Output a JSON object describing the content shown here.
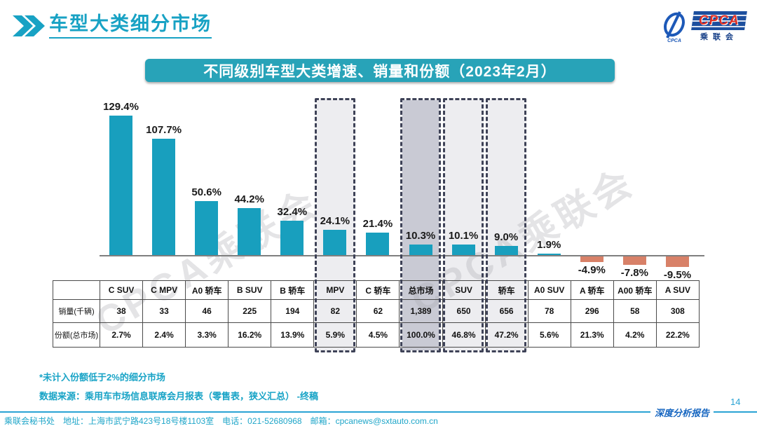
{
  "header": {
    "title": "车型大类细分市场"
  },
  "logo": {
    "emblem_sub": "CPCA",
    "box_text": "CPCA",
    "box_sub": "乘联会"
  },
  "chart_data": {
    "type": "bar",
    "title": "不同级别车型大类增速、销量和份额（2023年2月）",
    "categories": [
      "C SUV",
      "C MPV",
      "A0 轿车",
      "B SUV",
      "B 轿车",
      "MPV",
      "C 轿车",
      "总市场",
      "SUV",
      "轿车",
      "A0 SUV",
      "A 轿车",
      "A00 轿车",
      "A SUV"
    ],
    "series": [
      {
        "name": "增速",
        "unit": "%",
        "values": [
          129.4,
          107.7,
          50.6,
          44.2,
          32.4,
          24.1,
          21.4,
          10.3,
          10.1,
          9.0,
          1.9,
          -4.9,
          -7.8,
          -9.5
        ]
      },
      {
        "name": "销量(千辆)",
        "values": [
          "38",
          "33",
          "46",
          "225",
          "194",
          "82",
          "62",
          "1,389",
          "650",
          "656",
          "78",
          "296",
          "58",
          "308"
        ]
      },
      {
        "name": "份额(总市场)",
        "values": [
          "2.7%",
          "2.4%",
          "3.3%",
          "16.2%",
          "13.9%",
          "5.9%",
          "4.5%",
          "100.0%",
          "46.8%",
          "47.2%",
          "5.6%",
          "21.3%",
          "4.2%",
          "22.2%"
        ]
      }
    ],
    "growth_labels": [
      "129.4%",
      "107.7%",
      "50.6%",
      "44.2%",
      "32.4%",
      "24.1%",
      "21.4%",
      "10.3%",
      "10.1%",
      "9.0%",
      "1.9%",
      "-4.9%",
      "-7.8%",
      "-9.5%"
    ],
    "highlighted": [
      {
        "index": 5,
        "emphasis": "light"
      },
      {
        "index": 7,
        "emphasis": "dark"
      },
      {
        "index": 8,
        "emphasis": "light"
      },
      {
        "index": 9,
        "emphasis": "light"
      }
    ],
    "colors": {
      "positive": "#189fbe",
      "negative": "#d88168",
      "highlight_light": "#ededf0",
      "highlight_dark": "#c9cad4",
      "axis": "#7f7f7f",
      "accent": "#18a2c4"
    },
    "ylim": [
      -20,
      140
    ],
    "grid": false,
    "legend": "none"
  },
  "table": {
    "row_labels": [
      "销量(千辆)",
      "份额(总市场)"
    ]
  },
  "watermark": "CPCA乘联会",
  "footnotes": [
    "*未计入份额低于2%的细分市场",
    "数据来源：乘用车市场信息联席会月报表（零售表，狭义汇总）  -终稿"
  ],
  "footer": {
    "contact": "乘联会秘书处　地址：上海市武宁路423号18号楼1103室　电话：021-52680968　邮箱：cpcanews@sxtauto.com.cn",
    "report_label": "深度分析报告",
    "page_number": "14"
  }
}
